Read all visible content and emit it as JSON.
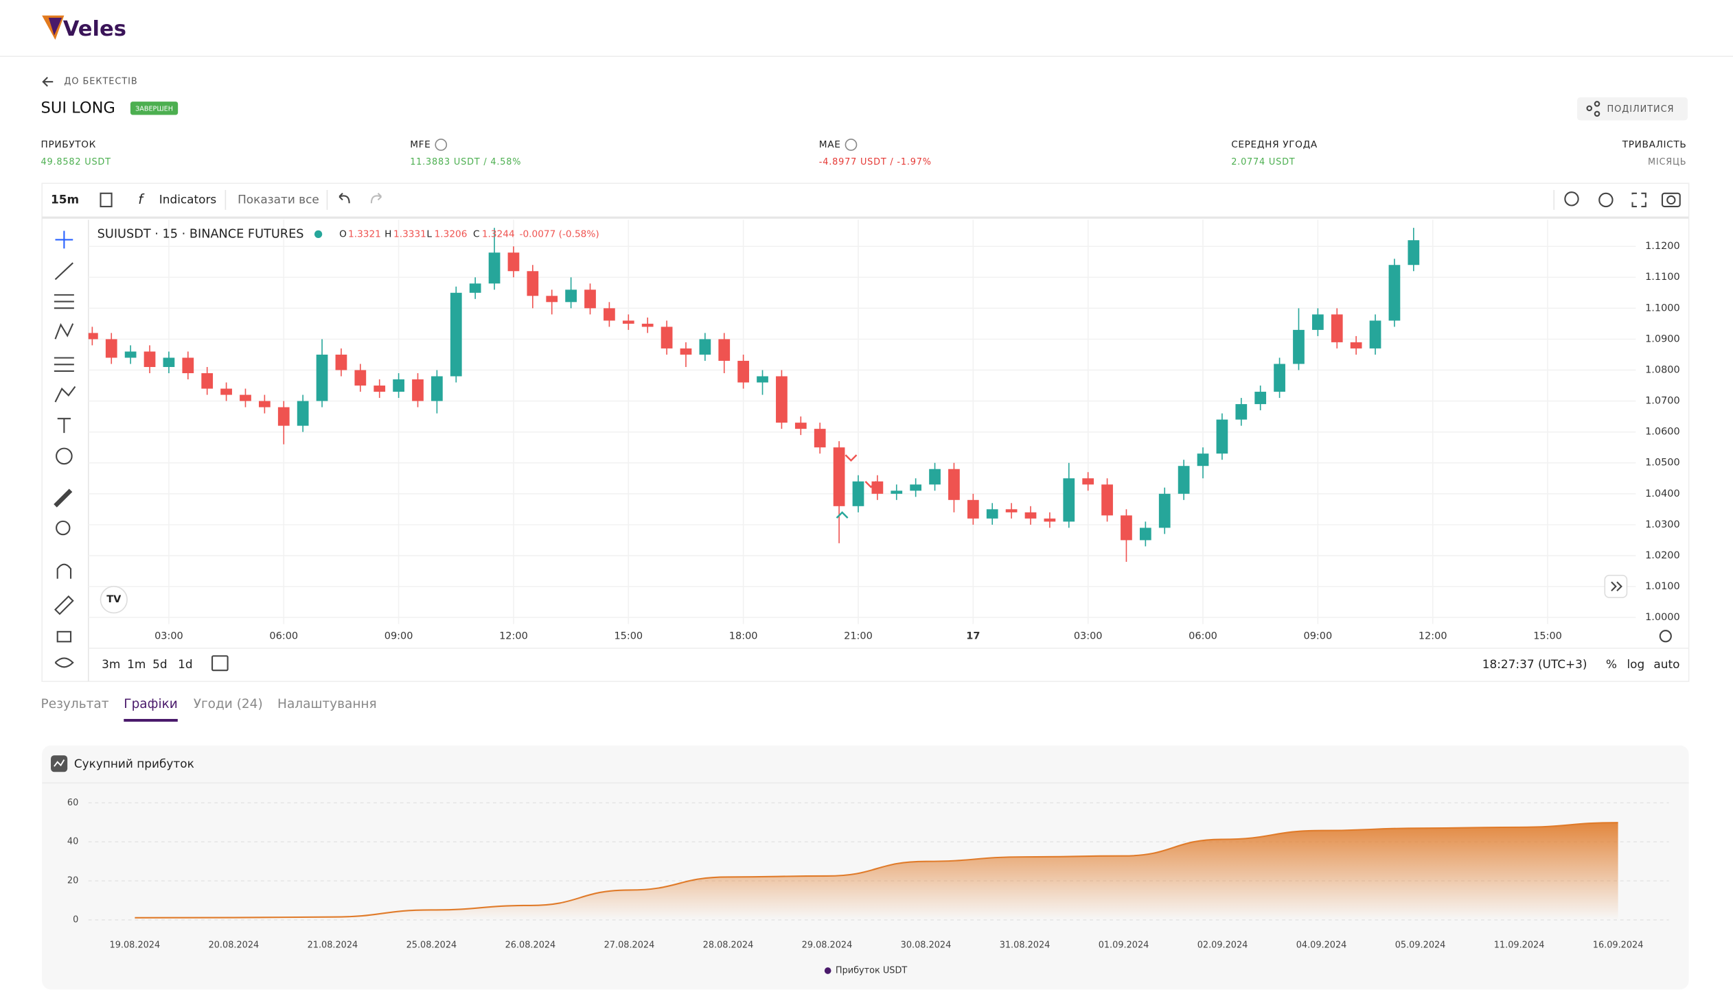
{
  "brand": "Veles",
  "nav": {
    "back": "ДО БЕКТЕСТІВ"
  },
  "backtest": {
    "title": "SUI LONG",
    "status": "ЗАВЕРШЕН",
    "share": "ПОДІЛИТИСЯ"
  },
  "stats": [
    {
      "label": "ПРИБУТОК",
      "value": "49.8582 USDT"
    },
    {
      "label": "MFE",
      "value": "11.3883 USDT / 4.58%"
    },
    {
      "label": "MAE",
      "value": "-4.8977 USDT / -1.97%"
    },
    {
      "label": "СЕРЕДНЯ УГОДА",
      "value": "2.0774 USDT"
    },
    {
      "label": "ТРИВАЛІСТЬ",
      "value": "МІСЯЦЬ"
    }
  ],
  "toolbar": {
    "interval": "15m",
    "indicators": "Indicators",
    "show_all": "Показати все"
  },
  "legend": {
    "symbol": "SUIUSDT · 15 · BINANCE FUTURES",
    "o_label": "O",
    "o": "1.3321",
    "h_label": "H",
    "h": "1.3331",
    "l_label": "L",
    "l": "1.3206",
    "c_label": "C",
    "c": "1.3244",
    "change": "-0.0077 (-0.58%)"
  },
  "bottom_bar": {
    "ranges": [
      "3m",
      "1m",
      "5d",
      "1d"
    ],
    "clock": "18:27:37 (UTC+3)",
    "percent": "%",
    "log": "log",
    "auto": "auto"
  },
  "tabs": [
    "Результат",
    "Графіки",
    "Угоди (24)",
    "Налаштування"
  ],
  "active_tab": 1,
  "chart_data": [
    {
      "type": "candlestick",
      "up_color": "#26a69a",
      "down_color": "#ef5350",
      "grid": true,
      "xlim": [
        0.9,
        41.3
      ],
      "xticks": [
        {
          "value": 3,
          "label": "03:00"
        },
        {
          "value": 6,
          "label": "06:00"
        },
        {
          "value": 9,
          "label": "09:00"
        },
        {
          "value": 12,
          "label": "12:00"
        },
        {
          "value": 15,
          "label": "15:00"
        },
        {
          "value": 18,
          "label": "18:00"
        },
        {
          "value": 21,
          "label": "21:00"
        },
        {
          "value": 24,
          "label": "17"
        },
        {
          "value": 27,
          "label": "03:00"
        },
        {
          "value": 30,
          "label": "06:00"
        },
        {
          "value": 33,
          "label": "09:00"
        },
        {
          "value": 36,
          "label": "12:00"
        },
        {
          "value": 39,
          "label": "15:00"
        }
      ],
      "ylim": [
        0.9979,
        1.1286
      ],
      "yticks": [
        {
          "value": 1,
          "label": "1.0000"
        },
        {
          "value": 1.01,
          "label": "1.0100"
        },
        {
          "value": 1.02,
          "label": "1.0200"
        },
        {
          "value": 1.03,
          "label": "1.0300"
        },
        {
          "value": 1.04,
          "label": "1.0400"
        },
        {
          "value": 1.05,
          "label": "1.0500"
        },
        {
          "value": 1.06,
          "label": "1.0600"
        },
        {
          "value": 1.07,
          "label": "1.0700"
        },
        {
          "value": 1.08,
          "label": "1.0800"
        },
        {
          "value": 1.09,
          "label": "1.0900"
        },
        {
          "value": 1.1,
          "label": "1.1000"
        },
        {
          "value": 1.11,
          "label": "1.1100"
        },
        {
          "value": 1.12,
          "label": "1.1200"
        }
      ],
      "x": [
        1,
        1.5,
        2,
        2.5,
        3,
        3.5,
        4,
        4.5,
        5,
        5.5,
        6,
        6.5,
        7,
        7.5,
        8,
        8.5,
        9,
        9.5,
        10,
        10.5,
        11,
        11.5,
        12,
        12.5,
        13,
        13.5,
        14,
        14.5,
        15,
        15.5,
        16,
        16.5,
        17,
        17.5,
        18,
        18.5,
        19,
        19.5,
        20,
        20.5,
        21,
        21.5,
        22,
        22.5,
        23,
        23.5,
        24,
        24.5,
        25,
        25.5,
        26,
        26.5,
        27,
        27.5,
        28,
        28.5,
        29,
        29.5,
        30,
        30.5,
        31,
        31.5,
        32,
        32.5,
        33,
        33.5,
        34,
        34.5,
        35,
        35.5
      ],
      "open": [
        1.092,
        1.09,
        1.084,
        1.086,
        1.081,
        1.084,
        1.079,
        1.074,
        1.072,
        1.07,
        1.068,
        1.062,
        1.07,
        1.085,
        1.08,
        1.075,
        1.073,
        1.077,
        1.07,
        1.078,
        1.105,
        1.108,
        1.118,
        1.112,
        1.104,
        1.102,
        1.106,
        1.1,
        1.096,
        1.095,
        1.094,
        1.087,
        1.085,
        1.09,
        1.083,
        1.076,
        1.078,
        1.063,
        1.061,
        1.055,
        1.036,
        1.044,
        1.04,
        1.041,
        1.043,
        1.048,
        1.038,
        1.032,
        1.035,
        1.034,
        1.032,
        1.031,
        1.045,
        1.043,
        1.033,
        1.025,
        1.029,
        1.04,
        1.049,
        1.053,
        1.064,
        1.069,
        1.073,
        1.082,
        1.093,
        1.098,
        1.089,
        1.087,
        1.096,
        1.114
      ],
      "high": [
        1.094,
        1.092,
        1.088,
        1.088,
        1.086,
        1.086,
        1.081,
        1.076,
        1.074,
        1.072,
        1.07,
        1.072,
        1.09,
        1.087,
        1.082,
        1.077,
        1.079,
        1.079,
        1.08,
        1.107,
        1.11,
        1.126,
        1.12,
        1.114,
        1.106,
        1.11,
        1.108,
        1.102,
        1.098,
        1.097,
        1.096,
        1.089,
        1.092,
        1.092,
        1.085,
        1.08,
        1.08,
        1.065,
        1.063,
        1.057,
        1.046,
        1.046,
        1.043,
        1.045,
        1.05,
        1.05,
        1.04,
        1.037,
        1.037,
        1.036,
        1.034,
        1.05,
        1.047,
        1.045,
        1.035,
        1.031,
        1.042,
        1.051,
        1.055,
        1.066,
        1.071,
        1.075,
        1.084,
        1.1,
        1.1,
        1.1,
        1.091,
        1.098,
        1.116,
        1.126
      ],
      "low": [
        1.088,
        1.082,
        1.082,
        1.079,
        1.079,
        1.077,
        1.072,
        1.07,
        1.068,
        1.066,
        1.056,
        1.06,
        1.068,
        1.078,
        1.073,
        1.071,
        1.071,
        1.068,
        1.066,
        1.076,
        1.103,
        1.106,
        1.11,
        1.1,
        1.098,
        1.1,
        1.098,
        1.094,
        1.093,
        1.092,
        1.085,
        1.081,
        1.083,
        1.079,
        1.074,
        1.072,
        1.061,
        1.059,
        1.053,
        1.024,
        1.034,
        1.038,
        1.038,
        1.039,
        1.041,
        1.034,
        1.03,
        1.03,
        1.032,
        1.03,
        1.029,
        1.029,
        1.041,
        1.031,
        1.018,
        1.023,
        1.027,
        1.038,
        1.045,
        1.051,
        1.062,
        1.067,
        1.071,
        1.08,
        1.091,
        1.087,
        1.085,
        1.085,
        1.094,
        1.112
      ],
      "close": [
        1.09,
        1.084,
        1.086,
        1.081,
        1.084,
        1.079,
        1.074,
        1.072,
        1.07,
        1.068,
        1.062,
        1.07,
        1.085,
        1.08,
        1.075,
        1.073,
        1.077,
        1.07,
        1.078,
        1.105,
        1.108,
        1.118,
        1.112,
        1.104,
        1.102,
        1.106,
        1.1,
        1.096,
        1.095,
        1.094,
        1.087,
        1.085,
        1.09,
        1.083,
        1.076,
        1.078,
        1.063,
        1.061,
        1.055,
        1.036,
        1.044,
        1.04,
        1.041,
        1.043,
        1.048,
        1.038,
        1.032,
        1.035,
        1.034,
        1.032,
        1.031,
        1.045,
        1.043,
        1.033,
        1.025,
        1.029,
        1.04,
        1.049,
        1.053,
        1.064,
        1.069,
        1.073,
        1.082,
        1.093,
        1.098,
        1.089,
        1.087,
        1.096,
        1.114,
        1.122
      ]
    },
    {
      "type": "area",
      "title": "Сукупний прибуток",
      "categories": [
        "19.08.2024",
        "20.08.2024",
        "21.08.2024",
        "25.08.2024",
        "26.08.2024",
        "27.08.2024",
        "28.08.2024",
        "29.08.2024",
        "30.08.2024",
        "31.08.2024",
        "01.09.2024",
        "02.09.2024",
        "04.09.2024",
        "05.09.2024",
        "11.09.2024",
        "16.09.2024"
      ],
      "series": [
        {
          "name": "Прибуток USDT",
          "color": "#e07b2a",
          "values": [
            1.1,
            1.2,
            1.5,
            5.1,
            7.4,
            15.3,
            22,
            22.5,
            30,
            32.3,
            32.8,
            41.3,
            45.8,
            47,
            47.5,
            49.8582
          ]
        }
      ],
      "legend_color": "#4a1a6b",
      "ylim": [
        0,
        60
      ],
      "yticks": [
        0,
        20,
        40,
        60
      ],
      "grid": true
    }
  ]
}
